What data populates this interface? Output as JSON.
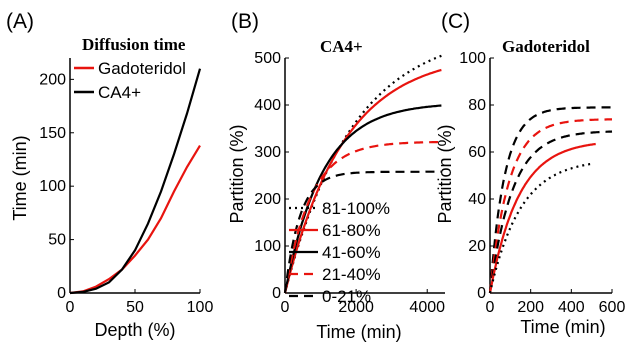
{
  "chart_data": [
    {
      "panel": "(A)",
      "type": "line",
      "title": "Diffusion time",
      "xlabel": "Depth (%)",
      "ylabel": "Time (min)",
      "xlim": [
        0,
        100
      ],
      "ylim": [
        0,
        220
      ],
      "xticks": [
        "0",
        "50",
        "100"
      ],
      "yticks": [
        "0",
        "50",
        "100",
        "150",
        "200"
      ],
      "legend_position": "top-left",
      "series": [
        {
          "name": "Gadoteridol",
          "color": "#e8140f",
          "dash": "solid",
          "x": [
            0,
            10,
            20,
            30,
            40,
            50,
            60,
            70,
            80,
            90,
            100
          ],
          "y": [
            0,
            1.5,
            6,
            13,
            22,
            35,
            50,
            70,
            95,
            118,
            138
          ]
        },
        {
          "name": "CA4+",
          "color": "#000000",
          "dash": "solid",
          "x": [
            0,
            10,
            20,
            30,
            40,
            50,
            60,
            70,
            80,
            90,
            100
          ],
          "y": [
            0,
            1,
            4,
            10,
            22,
            40,
            65,
            95,
            130,
            168,
            210
          ]
        }
      ]
    },
    {
      "panel": "(B)",
      "type": "line",
      "title": "CA4+",
      "xlabel": "Time (min)",
      "ylabel": "Partition (%)",
      "xlim": [
        0,
        4500
      ],
      "ylim": [
        0,
        500
      ],
      "xticks": [
        "0",
        "2000",
        "4000"
      ],
      "yticks": [
        "0",
        "100",
        "200",
        "300",
        "400",
        "500"
      ],
      "legend_position": "bottom-right",
      "series": [
        {
          "name": "81-100%",
          "color": "#000000",
          "dash": "dotted",
          "asymptote": 560,
          "tau": 1900,
          "end": 4400
        },
        {
          "name": "61-80%",
          "color": "#e8140f",
          "dash": "solid",
          "asymptote": 510,
          "tau": 1650,
          "end": 4400
        },
        {
          "name": "41-60%",
          "color": "#000000",
          "dash": "solid",
          "asymptote": 405,
          "tau": 1050,
          "end": 4400
        },
        {
          "name": "21-40%",
          "color": "#e8140f",
          "dash": "dashed",
          "asymptote": 322,
          "tau": 720,
          "end": 4400
        },
        {
          "name": "0-21%",
          "color": "#000000",
          "dash": "dashed",
          "asymptote": 258,
          "tau": 420,
          "end": 4400
        }
      ]
    },
    {
      "panel": "(C)",
      "type": "line",
      "title": "Gadoteridol",
      "xlabel": "Time (min)",
      "ylabel": "Partition (%)",
      "xlim": [
        0,
        600
      ],
      "ylim": [
        0,
        100
      ],
      "xticks": [
        "0",
        "200",
        "400",
        "600"
      ],
      "yticks": [
        "0",
        "20",
        "40",
        "60",
        "80",
        "100"
      ],
      "series": [
        {
          "name": "0-21%",
          "color": "#000000",
          "dash": "dashed",
          "asymptote": 79,
          "tau": 72,
          "end": 600
        },
        {
          "name": "21-40%",
          "color": "#e8140f",
          "dash": "dashed",
          "asymptote": 74,
          "tau": 92,
          "end": 600
        },
        {
          "name": "41-60%",
          "color": "#000000",
          "dash": "dashed",
          "asymptote": 69,
          "tau": 110,
          "end": 600
        },
        {
          "name": "61-80%",
          "color": "#e8140f",
          "dash": "solid",
          "asymptote": 65,
          "tau": 140,
          "end": 520
        },
        {
          "name": "81-100%",
          "color": "#000000",
          "dash": "dotted",
          "asymptote": 57,
          "tau": 150,
          "end": 500
        }
      ]
    }
  ]
}
